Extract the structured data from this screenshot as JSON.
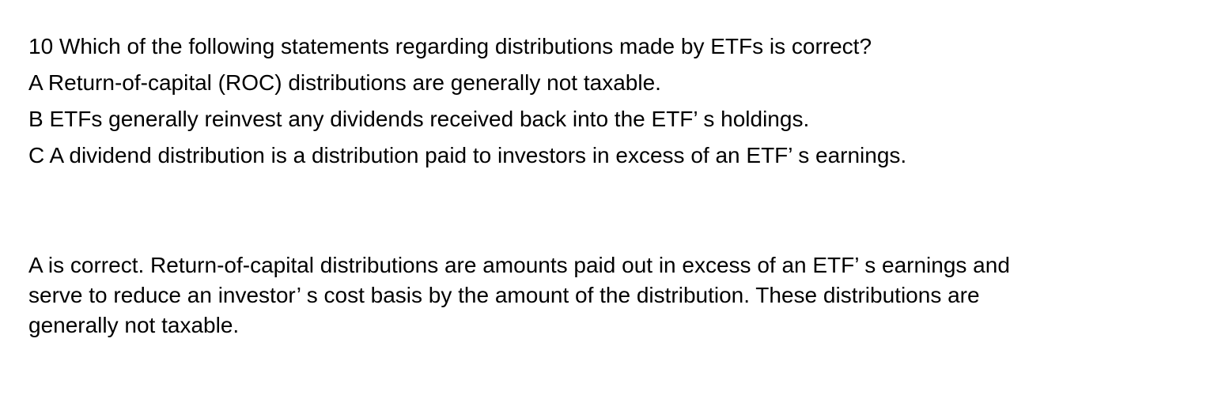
{
  "page": {
    "background_color": "#ffffff",
    "text_color": "#000000"
  },
  "question": {
    "number": "10",
    "stem": "10 Which of the following statements regarding distributions made by ETFs is correct?",
    "options": [
      "A Return-of-capital (ROC) distributions are generally not taxable.",
      "B ETFs generally reinvest any dividends received back into the ETF’ s holdings.",
      "C A dividend distribution is a distribution paid to investors in excess of an ETF’ s earnings."
    ]
  },
  "answer": {
    "correct_option": "A",
    "lines": [
      "A is correct. Return-of-capital distributions are amounts paid out in excess of an ETF’ s earnings and",
      "serve to reduce an investor’ s cost basis by the amount of the distribution. These distributions are",
      "generally not taxable."
    ]
  }
}
